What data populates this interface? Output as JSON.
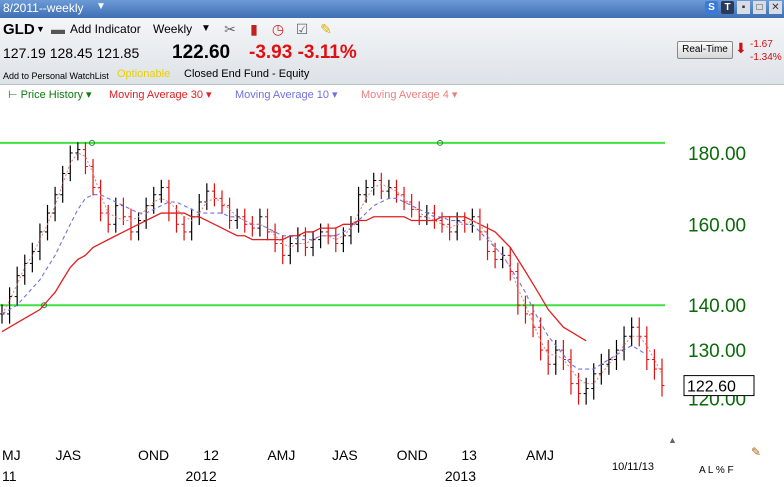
{
  "window": {
    "title": "8/2011--weekly"
  },
  "toolbar": {
    "symbol": "GLD",
    "add_indicator": "Add Indicator",
    "interval": "Weekly",
    "add_watchlist": "Add to Personal WatchList",
    "optionable": "Optionable",
    "fund_type": "Closed End Fund - Equity"
  },
  "quote": {
    "open": "127.19",
    "high": "128.45",
    "low": "121.85",
    "last": "122.60",
    "change": "-3.93",
    "change_pct": "-3.11%"
  },
  "realtime": {
    "label": "Real-Time",
    "change": "-1.67",
    "change_pct": "-1.34%"
  },
  "legend": {
    "price": "Price History",
    "ma30": "Moving Average 30",
    "ma10": "Moving Average 10",
    "ma4": "Moving Average 4"
  },
  "colors": {
    "price": "#0a7a0a",
    "ma30": "#e02020",
    "ma10": "#7070e0",
    "ma4": "#e88080",
    "line": "#40e040",
    "up": "#000000",
    "down": "#e01010",
    "axis_label": "#0a6a0a"
  },
  "bottom": {
    "date": "10/11/13",
    "tools": "A L % F"
  },
  "chart_data": {
    "type": "line",
    "series": [
      {
        "name": "Price History",
        "values": [
          138,
          142,
          147,
          150,
          153,
          158,
          163,
          168,
          174,
          180,
          181,
          176,
          170,
          163,
          160,
          165,
          162,
          158,
          161,
          165,
          168,
          170,
          163,
          160,
          158,
          162,
          166,
          169,
          167,
          165,
          161,
          162,
          160,
          159,
          162,
          158,
          155,
          152,
          155,
          157,
          154,
          156,
          158,
          157,
          155,
          157,
          160,
          168,
          170,
          172,
          169,
          170,
          168,
          166,
          164,
          162,
          163,
          161,
          160,
          158,
          161,
          160,
          162,
          158,
          153,
          151,
          152,
          148,
          140,
          138,
          135,
          130,
          127,
          130,
          128,
          123,
          121,
          122,
          125,
          127,
          128,
          130,
          133,
          135,
          133,
          128,
          126,
          122.6
        ]
      },
      {
        "name": "Moving Average 30",
        "values": [
          134,
          135,
          136,
          137,
          138,
          139,
          141,
          143,
          146,
          149,
          151,
          152,
          154,
          155,
          156,
          157,
          158,
          159,
          160,
          161,
          162,
          163,
          163,
          163,
          163,
          162,
          162,
          161,
          160,
          159,
          158,
          157,
          157,
          156,
          156,
          156,
          156,
          156,
          157,
          157,
          158,
          158,
          159,
          159,
          159,
          160,
          160,
          161,
          161,
          162,
          162,
          162,
          162,
          162,
          161,
          161,
          161,
          161,
          162,
          162,
          162,
          162,
          161,
          160,
          159,
          158,
          156,
          154,
          151,
          148,
          145,
          142,
          139,
          137,
          135,
          134,
          133,
          132
        ]
      },
      {
        "name": "Moving Average 10",
        "values": [
          138,
          139,
          140,
          142,
          144,
          146,
          149,
          152,
          156,
          160,
          164,
          167,
          168,
          168,
          167,
          166,
          165,
          164,
          163,
          163,
          164,
          165,
          166,
          166,
          165,
          164,
          163,
          163,
          163,
          163,
          162,
          162,
          161,
          160,
          160,
          159,
          158,
          157,
          157,
          156,
          156,
          156,
          157,
          157,
          157,
          158,
          159,
          161,
          163,
          165,
          166,
          167,
          167,
          166,
          165,
          164,
          163,
          162,
          162,
          161,
          161,
          160,
          160,
          158,
          156,
          154,
          152,
          149,
          146,
          143,
          139,
          136,
          133,
          131,
          129,
          127,
          126,
          126,
          126,
          127,
          128,
          129,
          130,
          131,
          130,
          129
        ]
      },
      {
        "name": "Moving Average 4",
        "values": [
          138,
          141,
          145,
          149,
          152,
          156,
          160,
          165,
          171,
          177,
          180,
          179,
          174,
          168,
          163,
          162,
          161,
          161,
          162,
          164,
          166,
          167,
          166,
          164,
          162,
          161,
          163,
          166,
          167,
          166,
          164,
          162,
          161,
          160,
          160,
          159,
          157,
          155,
          154,
          155,
          155,
          156,
          157,
          157,
          156,
          157,
          159,
          163,
          167,
          170,
          171,
          170,
          169,
          167,
          165,
          163,
          162,
          161,
          160,
          159,
          160,
          160,
          161,
          160,
          157,
          154,
          152,
          149,
          144,
          140,
          136,
          132,
          129,
          129,
          128,
          126,
          124,
          123,
          123,
          125,
          127,
          129,
          131,
          133,
          133,
          131,
          128,
          125
        ]
      }
    ],
    "y_ticks": [
      "180.00",
      "160.00",
      "140.00",
      "130.00",
      "120.00"
    ],
    "x_ticks": [
      "MJ",
      "JAS",
      "OND",
      "12",
      "AMJ",
      "JAS",
      "OND",
      "13",
      "AMJ"
    ],
    "x_year_labels": [
      "11",
      "2012",
      "2013"
    ],
    "horizontal_lines": [
      183,
      140
    ],
    "last_label": "122.60",
    "y_scale": "log"
  }
}
